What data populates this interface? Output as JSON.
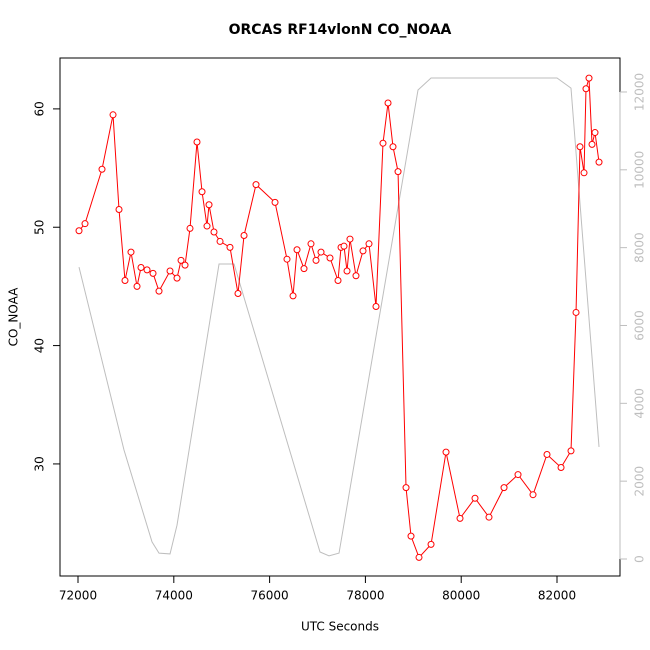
{
  "chart_data": {
    "type": "line",
    "title": "ORCAS RF14vlonN CO_NOAA",
    "x_label": "UTC Seconds",
    "y_label": "CO_NOAA",
    "xlim": [
      71624,
      83315
    ],
    "xticks": [
      72000,
      74000,
      76000,
      78000,
      80000,
      82000
    ],
    "ylim": [
      20.53,
      64.3
    ],
    "yticks": [
      30,
      40,
      50,
      60
    ],
    "y2lim": [
      -437,
      12873
    ],
    "y2ticks": [
      0,
      2000,
      4000,
      6000,
      8000,
      10000,
      12000
    ],
    "series": [
      {
        "color": "#bebebe",
        "axis": "y2",
        "markers": false,
        "x": [
          72021,
          72960,
          73545,
          73691,
          73921,
          74067,
          74944,
          75257,
          77052,
          77240,
          77449,
          79098,
          79370,
          82000,
          82292,
          82877
        ],
        "values": [
          7500,
          2800,
          440,
          150,
          130,
          870,
          7580,
          7580,
          180,
          80,
          150,
          12050,
          12360,
          12360,
          12100,
          2880
        ]
      },
      {
        "color": "#ff0000",
        "axis": "y",
        "markers": true,
        "x": [
          72021,
          72146,
          72501,
          72731,
          72856,
          72981,
          73106,
          73232,
          73315,
          73441,
          73566,
          73691,
          73921,
          74067,
          74151,
          74234,
          74338,
          74484,
          74589,
          74693,
          74735,
          74839,
          74965,
          75173,
          75340,
          75466,
          75716,
          76113,
          76363,
          76489,
          76572,
          76718,
          76864,
          76969,
          77073,
          77261,
          77428,
          77491,
          77553,
          77616,
          77678,
          77803,
          77950,
          78075,
          78221,
          78367,
          78472,
          78576,
          78681,
          78848,
          78952,
          79119,
          79370,
          79683,
          79975,
          80288,
          80580,
          80894,
          81186,
          81499,
          81791,
          82084,
          82292,
          82397,
          82480,
          82564,
          82605,
          82668,
          82731,
          82793,
          82877
        ],
        "values": [
          49.7,
          50.3,
          54.9,
          59.5,
          51.5,
          45.5,
          47.9,
          45.0,
          46.6,
          46.4,
          46.1,
          44.6,
          46.3,
          45.7,
          47.2,
          46.8,
          49.9,
          57.2,
          53.0,
          50.1,
          51.9,
          49.6,
          48.8,
          48.3,
          44.4,
          49.3,
          53.6,
          52.1,
          47.3,
          44.2,
          48.1,
          46.5,
          48.6,
          47.2,
          47.9,
          47.4,
          45.5,
          48.3,
          48.4,
          46.3,
          49.0,
          45.9,
          48.0,
          48.6,
          43.3,
          57.1,
          60.5,
          56.8,
          54.7,
          28.0,
          23.9,
          22.1,
          23.2,
          31.0,
          25.4,
          27.1,
          25.5,
          28.0,
          29.1,
          27.4,
          30.8,
          29.7,
          31.1,
          42.8,
          56.8,
          54.6,
          61.7,
          62.6,
          57.0,
          58.0,
          55.5
        ]
      }
    ]
  }
}
